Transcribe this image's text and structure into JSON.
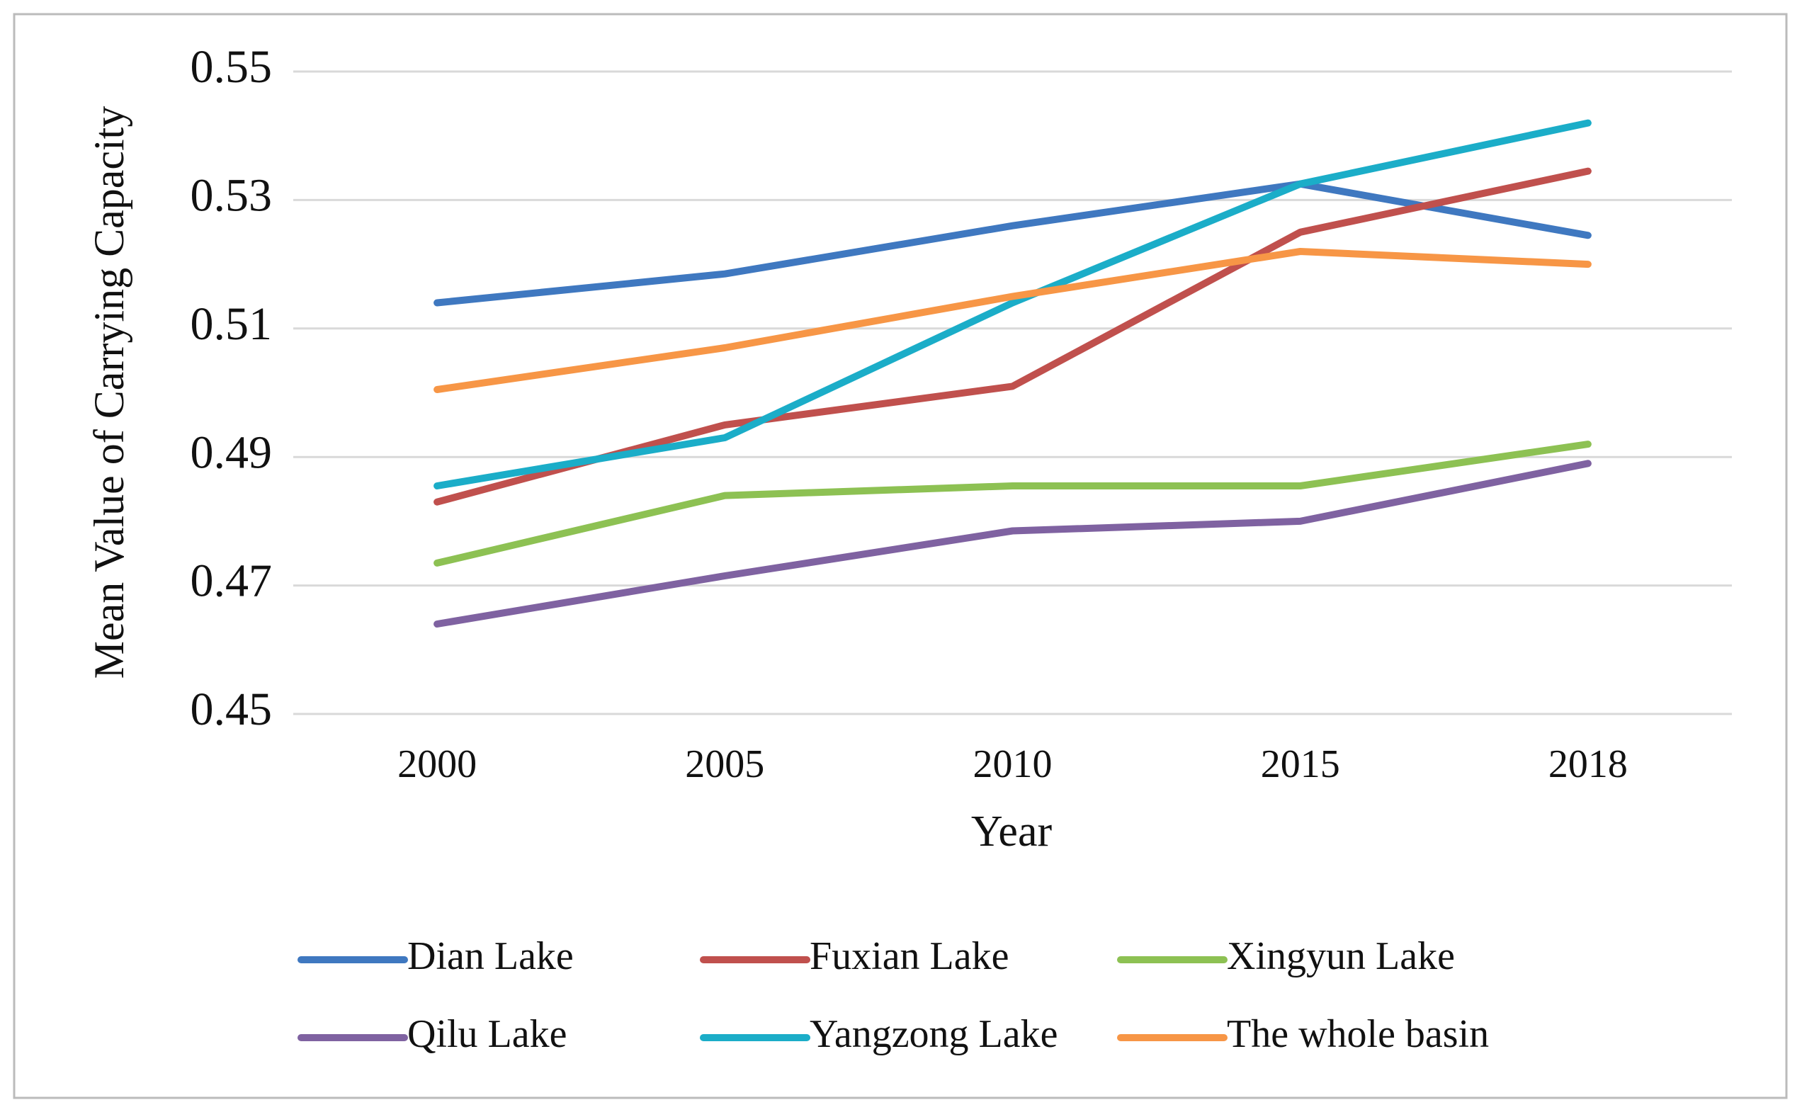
{
  "chart_data": {
    "type": "line",
    "x_label": "Year",
    "y_label": "Mean Value of Carrying Capacity",
    "categories": [
      "2000",
      "2005",
      "2010",
      "2015",
      "2018"
    ],
    "ylim": [
      0.45,
      0.55
    ],
    "yticks": [
      0.45,
      0.47,
      0.49,
      0.51,
      0.53,
      0.55
    ],
    "grid": true,
    "legend": "bottom",
    "series": [
      {
        "name": "Dian Lake",
        "color": "#3f78c0",
        "values": [
          0.514,
          0.5185,
          0.526,
          0.5325,
          0.5245
        ]
      },
      {
        "name": "Fuxian Lake",
        "color": "#c0504d",
        "values": [
          0.483,
          0.495,
          0.501,
          0.525,
          0.5345
        ]
      },
      {
        "name": "Xingyun Lake",
        "color": "#8dc153",
        "values": [
          0.4735,
          0.484,
          0.4855,
          0.4855,
          0.492
        ]
      },
      {
        "name": "Qilu Lake",
        "color": "#7f62a1",
        "values": [
          0.464,
          0.4715,
          0.4785,
          0.48,
          0.489
        ]
      },
      {
        "name": "Yangzong Lake",
        "color": "#1badc8",
        "values": [
          0.4855,
          0.493,
          0.514,
          0.5325,
          0.542
        ]
      },
      {
        "name": "The whole basin",
        "color": "#f79646",
        "values": [
          0.5005,
          0.507,
          0.515,
          0.522,
          0.52
        ]
      }
    ]
  }
}
